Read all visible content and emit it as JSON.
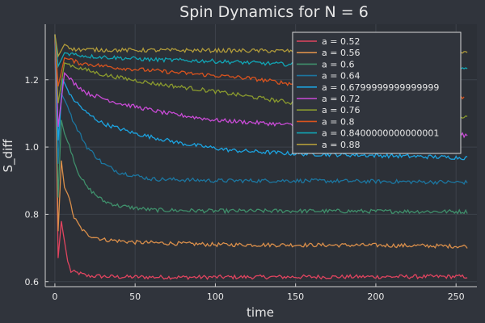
{
  "chart_data": {
    "type": "line",
    "title": "Spin Dynamics for N = 6",
    "xlabel": "time",
    "ylabel": "S_diff",
    "xlim": [
      -6,
      263
    ],
    "ylim": [
      0.585,
      1.365
    ],
    "xticks": [
      0,
      50,
      100,
      150,
      200,
      250
    ],
    "yticks": [
      0.6,
      0.8,
      1.0,
      1.2
    ],
    "ytick_labels": [
      "0.6",
      "0.8",
      "1.0",
      "1.2"
    ],
    "grid": true,
    "legend_position": "top-right",
    "t_end": 257,
    "series": [
      {
        "name": "a = 0.52",
        "color": "#e0445f",
        "points": [
          [
            0,
            1.335
          ],
          [
            2,
            0.67
          ],
          [
            4,
            0.78
          ],
          [
            6,
            0.72
          ],
          [
            8,
            0.66
          ],
          [
            10,
            0.63
          ],
          [
            15,
            0.625
          ],
          [
            20,
            0.617
          ],
          [
            40,
            0.614
          ],
          [
            80,
            0.613
          ],
          [
            150,
            0.614
          ],
          [
            257,
            0.615
          ]
        ]
      },
      {
        "name": "a = 0.56",
        "color": "#d98e4a",
        "points": [
          [
            0,
            1.335
          ],
          [
            2,
            0.75
          ],
          [
            4,
            0.96
          ],
          [
            6,
            0.88
          ],
          [
            8,
            0.86
          ],
          [
            12,
            0.79
          ],
          [
            16,
            0.76
          ],
          [
            20,
            0.74
          ],
          [
            30,
            0.725
          ],
          [
            50,
            0.717
          ],
          [
            100,
            0.71
          ],
          [
            200,
            0.708
          ],
          [
            257,
            0.705
          ]
        ]
      },
      {
        "name": "a = 0.6",
        "color": "#3f8f6b",
        "points": [
          [
            0,
            1.335
          ],
          [
            2,
            0.85
          ],
          [
            4,
            1.08
          ],
          [
            6,
            1.04
          ],
          [
            10,
            0.99
          ],
          [
            14,
            0.93
          ],
          [
            20,
            0.88
          ],
          [
            30,
            0.84
          ],
          [
            40,
            0.825
          ],
          [
            60,
            0.813
          ],
          [
            100,
            0.81
          ],
          [
            150,
            0.81
          ],
          [
            257,
            0.808
          ]
        ]
      },
      {
        "name": "a = 0.64",
        "color": "#1c76a0",
        "points": [
          [
            0,
            1.335
          ],
          [
            2,
            0.95
          ],
          [
            4,
            1.16
          ],
          [
            8,
            1.12
          ],
          [
            12,
            1.07
          ],
          [
            20,
            1.0
          ],
          [
            30,
            0.95
          ],
          [
            40,
            0.925
          ],
          [
            60,
            0.905
          ],
          [
            100,
            0.9
          ],
          [
            150,
            0.9
          ],
          [
            257,
            0.895
          ]
        ]
      },
      {
        "name": "a = 0.6799999999999999",
        "color": "#1ca3e0",
        "points": [
          [
            0,
            1.335
          ],
          [
            2,
            1.02
          ],
          [
            5,
            1.2
          ],
          [
            10,
            1.15
          ],
          [
            20,
            1.1
          ],
          [
            30,
            1.07
          ],
          [
            50,
            1.04
          ],
          [
            80,
            1.01
          ],
          [
            110,
            0.99
          ],
          [
            150,
            0.98
          ],
          [
            200,
            0.975
          ],
          [
            257,
            0.968
          ]
        ]
      },
      {
        "name": "a = 0.72",
        "color": "#c94bd6",
        "points": [
          [
            0,
            1.335
          ],
          [
            2,
            1.06
          ],
          [
            6,
            1.22
          ],
          [
            12,
            1.19
          ],
          [
            20,
            1.16
          ],
          [
            40,
            1.13
          ],
          [
            70,
            1.1
          ],
          [
            100,
            1.08
          ],
          [
            150,
            1.065
          ],
          [
            200,
            1.048
          ],
          [
            230,
            1.04
          ],
          [
            257,
            1.035
          ]
        ]
      },
      {
        "name": "a = 0.76",
        "color": "#8a9a2e",
        "points": [
          [
            0,
            1.335
          ],
          [
            2,
            1.13
          ],
          [
            6,
            1.25
          ],
          [
            15,
            1.235
          ],
          [
            30,
            1.215
          ],
          [
            60,
            1.19
          ],
          [
            100,
            1.165
          ],
          [
            150,
            1.13
          ],
          [
            200,
            1.105
          ],
          [
            230,
            1.095
          ],
          [
            257,
            1.09
          ]
        ]
      },
      {
        "name": "a = 0.8",
        "color": "#d9531e",
        "points": [
          [
            0,
            1.335
          ],
          [
            2,
            1.18
          ],
          [
            6,
            1.265
          ],
          [
            15,
            1.25
          ],
          [
            40,
            1.235
          ],
          [
            80,
            1.22
          ],
          [
            120,
            1.205
          ],
          [
            160,
            1.18
          ],
          [
            200,
            1.165
          ],
          [
            240,
            1.155
          ],
          [
            255,
            1.148
          ]
        ]
      },
      {
        "name": "a = 0.8400000000000001",
        "color": "#11a5b5",
        "points": [
          [
            0,
            1.335
          ],
          [
            2,
            1.24
          ],
          [
            6,
            1.28
          ],
          [
            20,
            1.27
          ],
          [
            60,
            1.26
          ],
          [
            100,
            1.255
          ],
          [
            150,
            1.245
          ],
          [
            200,
            1.242
          ],
          [
            257,
            1.235
          ]
        ]
      },
      {
        "name": "a = 0.88",
        "color": "#b09a3a",
        "points": [
          [
            0,
            1.335
          ],
          [
            2,
            1.27
          ],
          [
            6,
            1.305
          ],
          [
            12,
            1.29
          ],
          [
            40,
            1.288
          ],
          [
            100,
            1.287
          ],
          [
            160,
            1.285
          ],
          [
            220,
            1.283
          ],
          [
            257,
            1.28
          ]
        ]
      }
    ]
  }
}
